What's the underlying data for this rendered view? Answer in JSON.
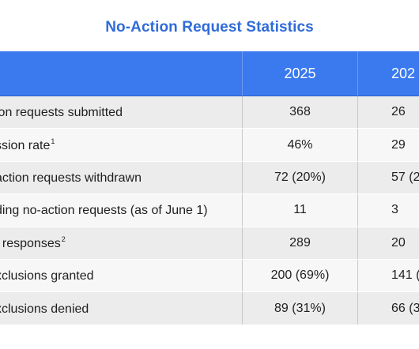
{
  "title": "No-Action Request Statistics",
  "table": {
    "headers": [
      "",
      "2025",
      "202"
    ],
    "rows": [
      {
        "label": "ion requests submitted",
        "sup": "",
        "v2025": "368",
        "v2024": "26"
      },
      {
        "label": "ssion rate",
        "sup": "1",
        "v2025": "46%",
        "v2024": "29"
      },
      {
        "label": "action requests withdrawn",
        "sup": "",
        "v2025": "72 (20%)",
        "v2024": "57 (2"
      },
      {
        "label": "ding no-action requests (as of June 1)",
        "sup": "",
        "v2025": "11",
        "v2024": "3"
      },
      {
        "label": "f responses",
        "sup": "2",
        "v2025": "289",
        "v2024": "20"
      },
      {
        "label": "xclusions granted",
        "sup": "",
        "v2025": "200 (69%)",
        "v2024": "141 (6"
      },
      {
        "label": "xclusions denied",
        "sup": "",
        "v2025": "89 (31%)",
        "v2024": "66 (3"
      }
    ]
  },
  "colors": {
    "title": "#2f6bd9",
    "header_bg": "#3a79ee",
    "row_odd": "#ececec",
    "row_even": "#f7f7f7"
  }
}
